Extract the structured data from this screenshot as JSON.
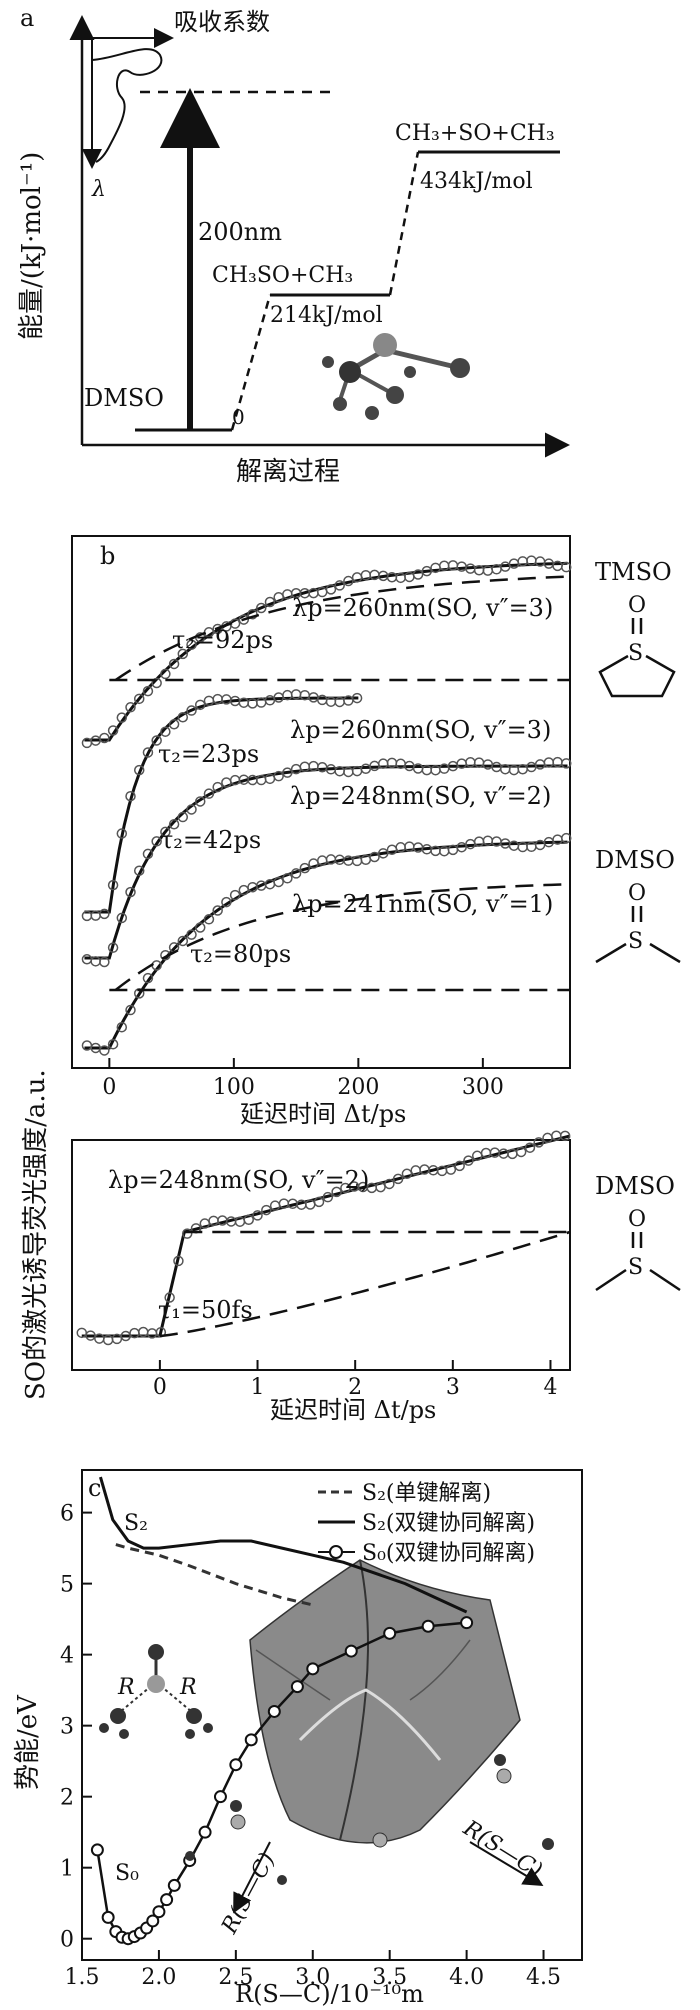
{
  "panel_a": {
    "label": "a",
    "ylabel": "能量/(kJ·mol⁻¹)",
    "xlabel": "解离过程",
    "absorption_label": "吸收系数",
    "lambda": "λ",
    "excitation": "200nm",
    "levels": [
      {
        "species": "DMSO",
        "value": "0"
      },
      {
        "species": "CH₃SO+CH₃",
        "value": "214kJ/mol"
      },
      {
        "species": "CH₃+SO+CH₃",
        "value": "434kJ/mol"
      }
    ]
  },
  "panel_b": {
    "label": "b",
    "ylabel": "SO的激光诱导荧光强度/a.u.",
    "xlabel": "延迟时间 Δt/ps",
    "xticks": [
      "0",
      "100",
      "200",
      "300"
    ],
    "traces": [
      {
        "probe": "λp=260nm(SO, v″=3)",
        "tau": "τ₂=92ps"
      },
      {
        "probe": "λp=260nm(SO, v″=3)",
        "tau": "τ₂=23ps"
      },
      {
        "probe": "λp=248nm(SO, v″=2)",
        "tau": "τ₂=42ps"
      },
      {
        "probe": "λp=241nm(SO, v″=1)",
        "tau": "τ₂=80ps"
      }
    ],
    "mol_top": "TMSO",
    "mol_mid": "DMSO"
  },
  "panel_b2": {
    "xlabel": "延迟时间 Δt/ps",
    "xticks": [
      "0",
      "1",
      "2",
      "3",
      "4"
    ],
    "probe": "λp=248nm(SO, v″=2)",
    "tau": "τ₁=50fs",
    "mol": "DMSO"
  },
  "panel_c": {
    "label": "c",
    "ylabel": "势能/eV",
    "xlabel": "R(S—C)/10⁻¹⁰m",
    "legend": [
      "S₂(单键解离)",
      "S₂(双键协同解离)",
      "S₀(双键协同解离)"
    ],
    "s2_label": "S₂",
    "s0_label": "S₀",
    "r_label": "R",
    "rsc_label": "R(S—C)",
    "xticks": [
      "1.5",
      "2.0",
      "2.5",
      "3.0",
      "3.5",
      "4.0",
      "4.5"
    ],
    "yticks": [
      "0",
      "1",
      "2",
      "3",
      "4",
      "5",
      "6"
    ]
  },
  "chart_data": [
    {
      "type": "line",
      "title": "",
      "xlabel": "延迟时间 Δt/ps",
      "ylabel": "SO的激光诱导荧光强度/a.u.",
      "xlim": [
        -30,
        370
      ],
      "series": [
        {
          "name": "λp=260nm(SO, v″=3)",
          "tau_ps": 92
        },
        {
          "name": "λp=260nm(SO, v″=3)",
          "tau_ps": 23
        },
        {
          "name": "λp=248nm(SO, v″=2)",
          "tau_ps": 42
        },
        {
          "name": "λp=241nm(SO, v″=1)",
          "tau_ps": 80
        }
      ]
    },
    {
      "type": "line",
      "title": "",
      "xlabel": "延迟时间 Δt/ps",
      "xlim": [
        -0.9,
        4.2
      ],
      "series": [
        {
          "name": "λp=248nm(SO, v″=2)",
          "tau_fs": 50
        }
      ]
    },
    {
      "type": "line",
      "title": "",
      "xlabel": "R(S—C)/10⁻¹⁰m",
      "ylabel": "势能/eV",
      "xlim": [
        1.5,
        4.75
      ],
      "ylim": [
        -0.3,
        6.6
      ],
      "series": [
        {
          "name": "S₂(单键解离)",
          "x": [
            1.72,
            1.8,
            2.0,
            2.2,
            2.5,
            2.8,
            3.0
          ],
          "y": [
            5.55,
            5.5,
            5.4,
            5.25,
            5.0,
            4.8,
            4.7
          ]
        },
        {
          "name": "S₂(双键协同解离)",
          "x": [
            1.62,
            1.7,
            1.8,
            1.9,
            2.0,
            2.2,
            2.4,
            2.6,
            2.8,
            3.0,
            3.2,
            3.4,
            3.6,
            3.8,
            4.0
          ],
          "y": [
            6.5,
            5.9,
            5.6,
            5.5,
            5.5,
            5.55,
            5.6,
            5.6,
            5.5,
            5.4,
            5.3,
            5.15,
            5.0,
            4.8,
            4.6
          ]
        },
        {
          "name": "S₀(双键协同解离)",
          "x": [
            1.6,
            1.67,
            1.72,
            1.76,
            1.8,
            1.84,
            1.88,
            1.92,
            1.96,
            2.0,
            2.05,
            2.1,
            2.2,
            2.3,
            2.4,
            2.5,
            2.6,
            2.75,
            2.9,
            3.0,
            3.25,
            3.5,
            3.75,
            4.0
          ],
          "y": [
            1.25,
            0.3,
            0.1,
            0.02,
            0.0,
            0.03,
            0.08,
            0.15,
            0.25,
            0.38,
            0.55,
            0.75,
            1.1,
            1.5,
            2.0,
            2.45,
            2.8,
            3.2,
            3.55,
            3.8,
            4.05,
            4.3,
            4.4,
            4.45
          ]
        }
      ]
    }
  ]
}
